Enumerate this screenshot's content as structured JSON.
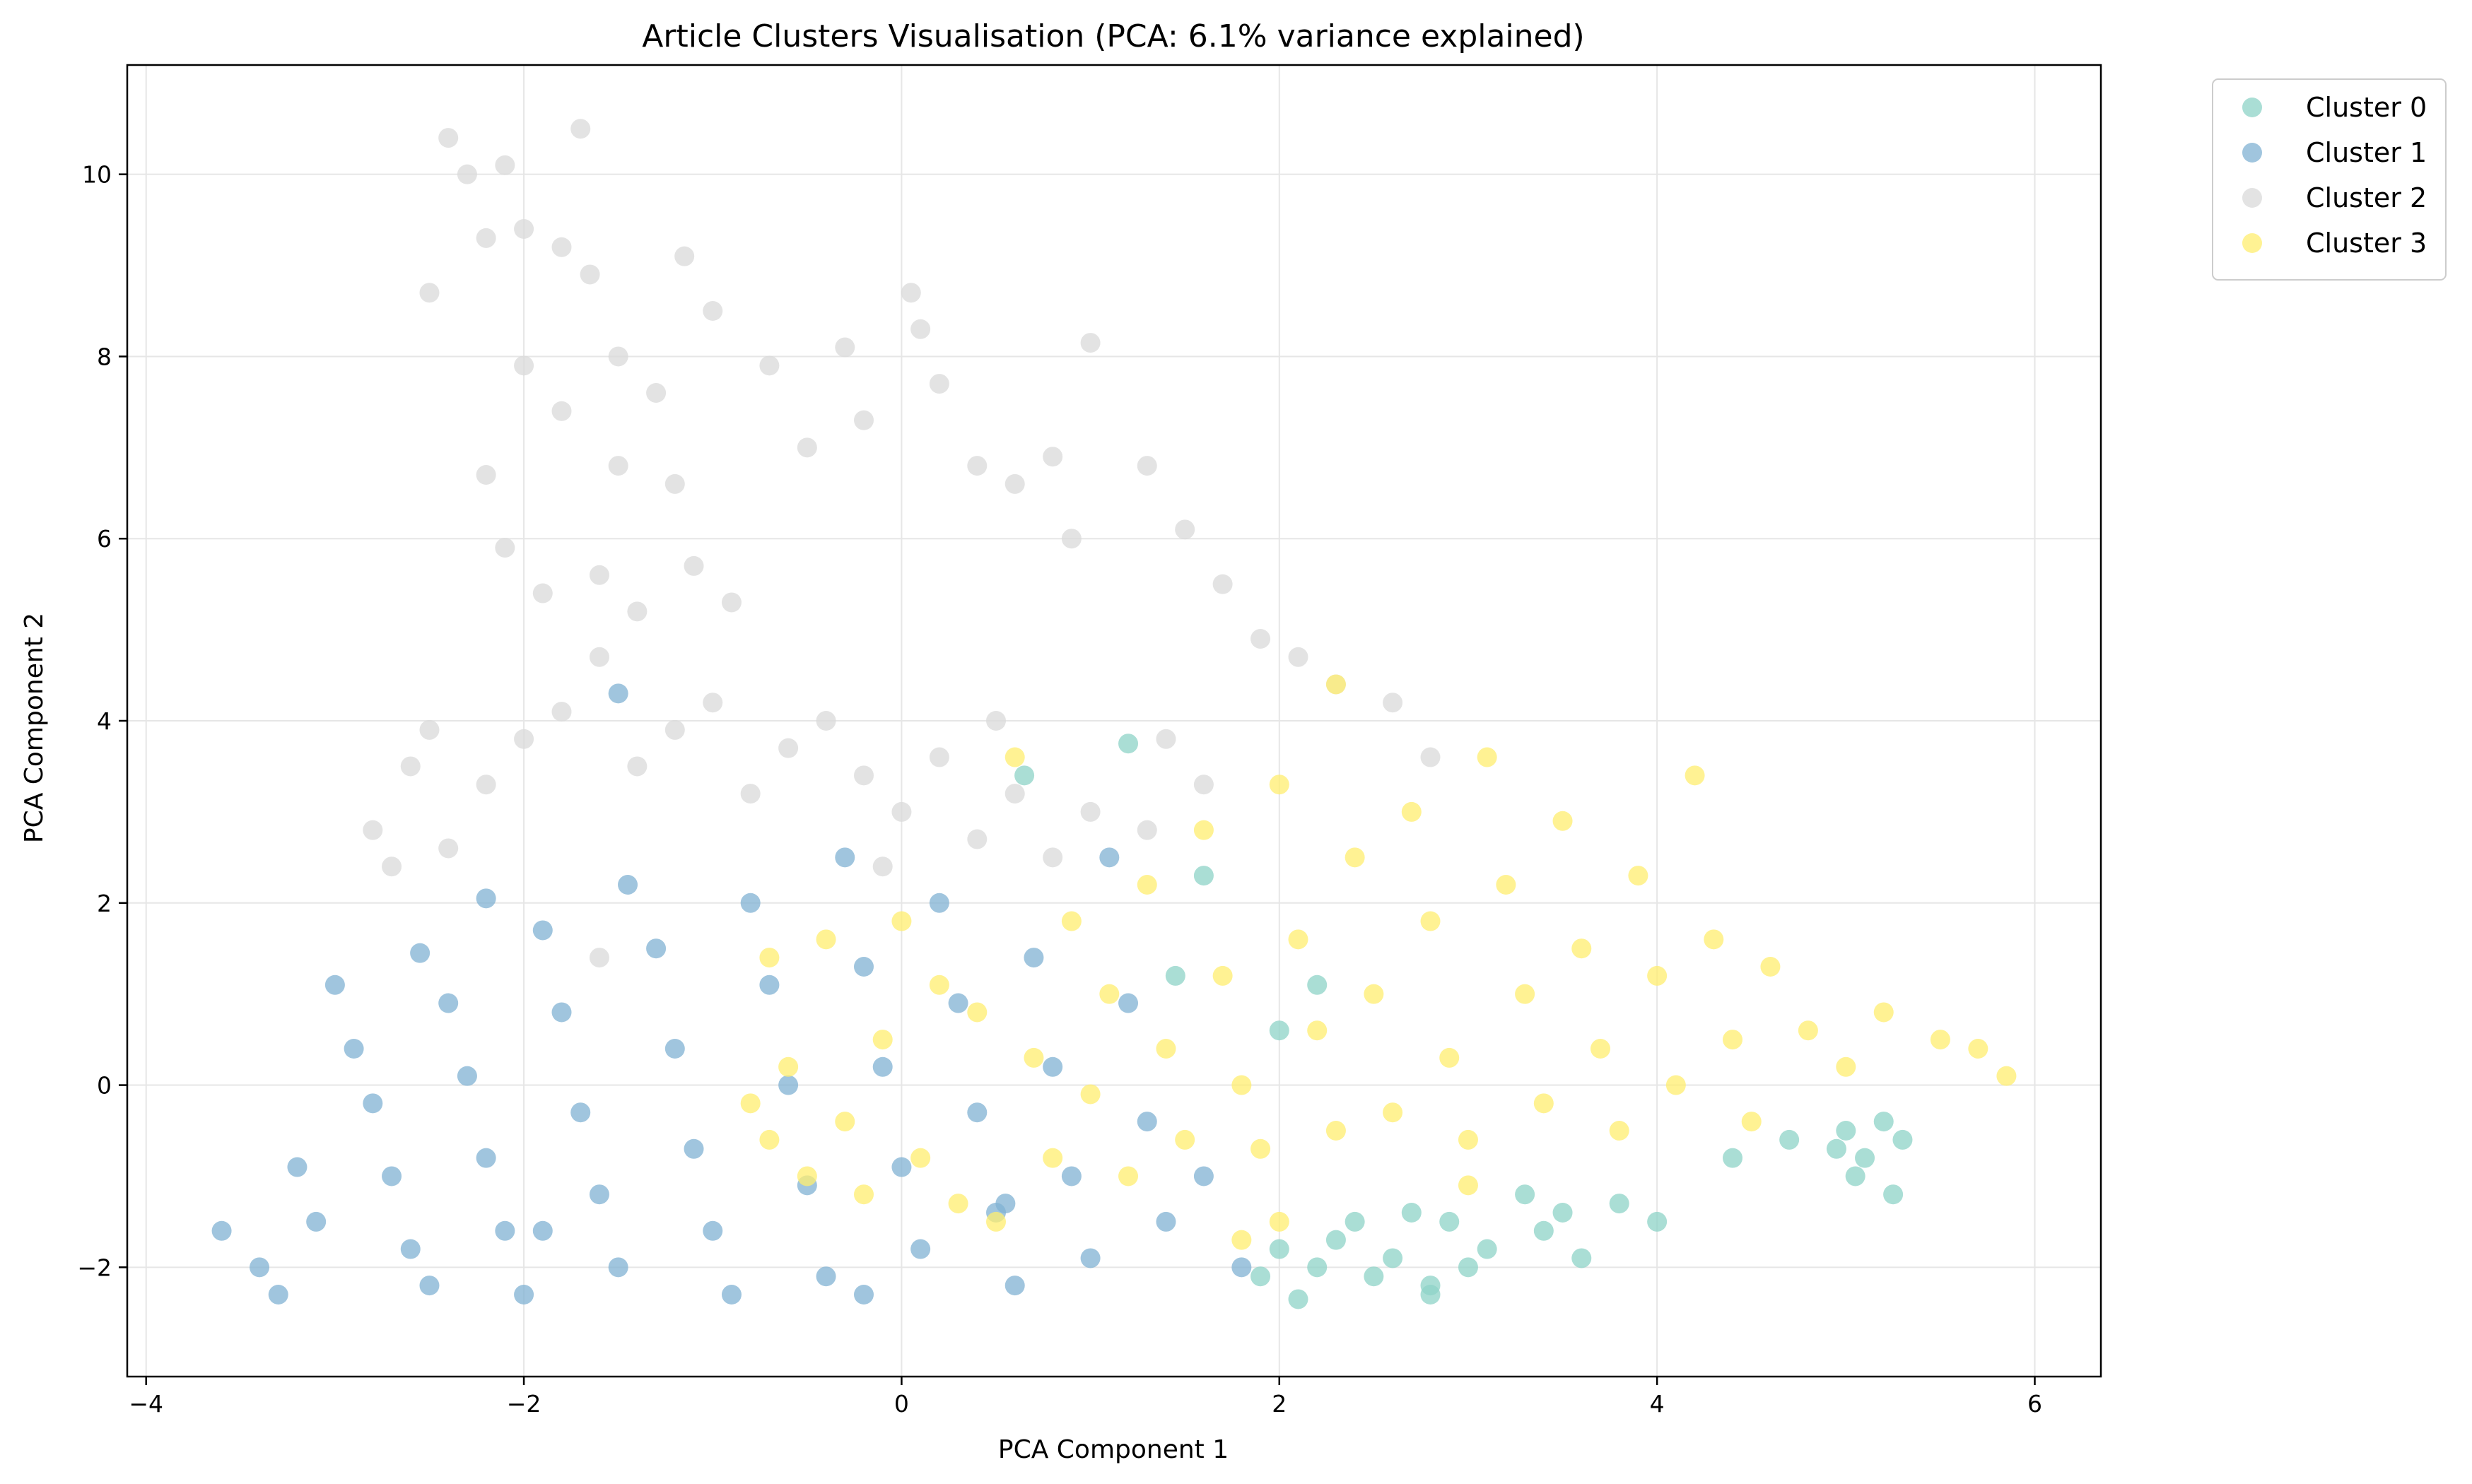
{
  "chart_data": {
    "type": "scatter",
    "title": "Article Clusters Visualisation (PCA: 6.1% variance explained)",
    "xlabel": "PCA Component 1",
    "ylabel": "PCA Component 2",
    "xlim": [
      -4.1,
      6.35
    ],
    "ylim": [
      -3.2,
      11.2
    ],
    "xticks": [
      -4,
      -2,
      0,
      2,
      4,
      6
    ],
    "yticks": [
      -2,
      0,
      2,
      4,
      6,
      8,
      10
    ],
    "grid": true,
    "legend_position": "outside-top-right",
    "series": [
      {
        "name": "Cluster 0",
        "color": "#8dd3c7",
        "points": [
          [
            2.3,
            -1.7
          ],
          [
            2.6,
            -1.9
          ],
          [
            2.9,
            -1.5
          ],
          [
            2.5,
            -2.1
          ],
          [
            3.1,
            -1.8
          ],
          [
            2.8,
            -2.2
          ],
          [
            3.4,
            -1.6
          ],
          [
            3.6,
            -1.9
          ],
          [
            2.2,
            -2.0
          ],
          [
            2.0,
            -1.8
          ],
          [
            3.8,
            -1.3
          ],
          [
            4.0,
            -1.5
          ],
          [
            3.3,
            -1.2
          ],
          [
            2.7,
            -1.4
          ],
          [
            1.9,
            -2.1
          ],
          [
            2.4,
            -1.5
          ],
          [
            3.0,
            -2.0
          ],
          [
            3.5,
            -1.4
          ],
          [
            4.4,
            -0.8
          ],
          [
            4.7,
            -0.6
          ],
          [
            5.0,
            -0.5
          ],
          [
            5.1,
            -0.8
          ],
          [
            5.2,
            -0.4
          ],
          [
            5.3,
            -0.6
          ],
          [
            5.25,
            -1.2
          ],
          [
            5.05,
            -1.0
          ],
          [
            4.95,
            -0.7
          ],
          [
            2.1,
            -2.35
          ],
          [
            2.8,
            -2.3
          ],
          [
            1.2,
            3.75
          ],
          [
            0.65,
            3.4
          ],
          [
            1.45,
            1.2
          ],
          [
            2.0,
            0.6
          ],
          [
            1.6,
            2.3
          ],
          [
            2.2,
            1.1
          ]
        ]
      },
      {
        "name": "Cluster 1",
        "color": "#80b1d3",
        "points": [
          [
            -3.6,
            -1.6
          ],
          [
            -3.4,
            -2.0
          ],
          [
            -3.3,
            -2.3
          ],
          [
            -3.1,
            -1.5
          ],
          [
            -3.2,
            -0.9
          ],
          [
            -3.0,
            1.1
          ],
          [
            -2.9,
            0.4
          ],
          [
            -2.8,
            -0.2
          ],
          [
            -2.7,
            -1.0
          ],
          [
            -2.6,
            -1.8
          ],
          [
            -2.5,
            -2.2
          ],
          [
            -2.55,
            1.45
          ],
          [
            -2.4,
            0.9
          ],
          [
            -2.3,
            0.1
          ],
          [
            -2.2,
            -0.8
          ],
          [
            -2.1,
            -1.6
          ],
          [
            -2.0,
            -2.3
          ],
          [
            -1.9,
            1.7
          ],
          [
            -1.8,
            0.8
          ],
          [
            -1.7,
            -0.3
          ],
          [
            -1.6,
            -1.2
          ],
          [
            -1.5,
            -2.0
          ],
          [
            -1.45,
            2.2
          ],
          [
            -1.3,
            1.5
          ],
          [
            -1.2,
            0.4
          ],
          [
            -1.1,
            -0.7
          ],
          [
            -1.0,
            -1.6
          ],
          [
            -0.9,
            -2.3
          ],
          [
            -0.8,
            2.0
          ],
          [
            -0.7,
            1.1
          ],
          [
            -0.6,
            0.0
          ],
          [
            -0.5,
            -1.1
          ],
          [
            -0.4,
            -2.1
          ],
          [
            -0.3,
            2.5
          ],
          [
            -0.2,
            1.3
          ],
          [
            -0.1,
            0.2
          ],
          [
            0.0,
            -0.9
          ],
          [
            0.1,
            -1.8
          ],
          [
            0.2,
            2.0
          ],
          [
            0.3,
            0.9
          ],
          [
            0.4,
            -0.3
          ],
          [
            0.5,
            -1.4
          ],
          [
            0.6,
            -2.2
          ],
          [
            0.7,
            1.4
          ],
          [
            0.8,
            0.2
          ],
          [
            0.9,
            -1.0
          ],
          [
            1.0,
            -1.9
          ],
          [
            1.2,
            0.9
          ],
          [
            1.3,
            -0.4
          ],
          [
            1.4,
            -1.5
          ],
          [
            1.6,
            -1.0
          ],
          [
            1.8,
            -2.0
          ],
          [
            1.1,
            2.5
          ],
          [
            -1.5,
            4.3
          ],
          [
            -2.2,
            2.05
          ],
          [
            -1.9,
            -1.6
          ],
          [
            -0.2,
            -2.3
          ],
          [
            0.55,
            -1.3
          ]
        ]
      },
      {
        "name": "Cluster 2",
        "color": "#d9d9d9",
        "points": [
          [
            -2.4,
            10.4
          ],
          [
            -2.3,
            10.0
          ],
          [
            -2.1,
            10.1
          ],
          [
            -2.2,
            9.3
          ],
          [
            -2.5,
            8.7
          ],
          [
            -2.0,
            9.4
          ],
          [
            -1.7,
            10.5
          ],
          [
            -1.8,
            9.2
          ],
          [
            -1.65,
            8.9
          ],
          [
            -1.15,
            9.1
          ],
          [
            -1.0,
            8.5
          ],
          [
            -2.0,
            7.9
          ],
          [
            -1.8,
            7.4
          ],
          [
            -1.5,
            8.0
          ],
          [
            -1.3,
            7.6
          ],
          [
            -1.2,
            6.6
          ],
          [
            -1.5,
            6.8
          ],
          [
            -2.2,
            6.7
          ],
          [
            -2.1,
            5.9
          ],
          [
            -1.9,
            5.4
          ],
          [
            -1.6,
            5.6
          ],
          [
            -1.4,
            5.2
          ],
          [
            -1.1,
            5.7
          ],
          [
            -0.9,
            5.3
          ],
          [
            -0.7,
            7.9
          ],
          [
            -0.5,
            7.0
          ],
          [
            -0.3,
            8.1
          ],
          [
            -0.2,
            7.3
          ],
          [
            0.05,
            8.7
          ],
          [
            0.1,
            8.3
          ],
          [
            0.2,
            7.7
          ],
          [
            0.4,
            6.8
          ],
          [
            0.6,
            6.6
          ],
          [
            0.8,
            6.9
          ],
          [
            1.0,
            8.15
          ],
          [
            1.3,
            6.8
          ],
          [
            0.9,
            6.0
          ],
          [
            1.5,
            6.1
          ],
          [
            1.7,
            5.5
          ],
          [
            1.9,
            4.9
          ],
          [
            2.1,
            4.7
          ],
          [
            2.3,
            4.4
          ],
          [
            2.6,
            4.2
          ],
          [
            2.8,
            3.6
          ],
          [
            -2.8,
            2.8
          ],
          [
            -2.6,
            3.5
          ],
          [
            -2.4,
            2.6
          ],
          [
            -2.2,
            3.3
          ],
          [
            -2.0,
            3.8
          ],
          [
            -1.8,
            4.1
          ],
          [
            -1.6,
            4.7
          ],
          [
            -1.4,
            3.5
          ],
          [
            -1.2,
            3.9
          ],
          [
            -1.0,
            4.2
          ],
          [
            -0.8,
            3.2
          ],
          [
            -0.6,
            3.7
          ],
          [
            -0.4,
            4.0
          ],
          [
            -0.2,
            3.4
          ],
          [
            0.0,
            3.0
          ],
          [
            0.2,
            3.6
          ],
          [
            0.4,
            2.7
          ],
          [
            0.6,
            3.2
          ],
          [
            0.8,
            2.5
          ],
          [
            1.0,
            3.0
          ],
          [
            1.3,
            2.8
          ],
          [
            1.6,
            3.3
          ],
          [
            -1.6,
            1.4
          ],
          [
            -2.7,
            2.4
          ],
          [
            0.5,
            4.0
          ],
          [
            1.4,
            3.8
          ],
          [
            -0.1,
            2.4
          ],
          [
            -2.5,
            3.9
          ]
        ]
      },
      {
        "name": "Cluster 3",
        "color": "#ffed6f",
        "points": [
          [
            -0.8,
            -0.2
          ],
          [
            -0.7,
            -0.6
          ],
          [
            -0.6,
            0.2
          ],
          [
            -0.5,
            -1.0
          ],
          [
            -0.4,
            1.6
          ],
          [
            -0.7,
            1.4
          ],
          [
            -0.3,
            -0.4
          ],
          [
            -0.2,
            -1.2
          ],
          [
            0.0,
            1.8
          ],
          [
            0.1,
            -0.8
          ],
          [
            0.3,
            -1.3
          ],
          [
            0.4,
            0.8
          ],
          [
            0.5,
            -1.5
          ],
          [
            0.7,
            0.3
          ],
          [
            0.8,
            -0.8
          ],
          [
            0.9,
            1.8
          ],
          [
            1.0,
            -0.1
          ],
          [
            1.1,
            1.0
          ],
          [
            1.2,
            -1.0
          ],
          [
            1.3,
            2.2
          ],
          [
            1.4,
            0.4
          ],
          [
            1.5,
            -0.6
          ],
          [
            1.6,
            2.8
          ],
          [
            1.7,
            1.2
          ],
          [
            1.8,
            0.0
          ],
          [
            1.9,
            -0.7
          ],
          [
            2.0,
            3.3
          ],
          [
            2.1,
            1.6
          ],
          [
            2.2,
            0.6
          ],
          [
            2.3,
            -0.5
          ],
          [
            2.3,
            4.4
          ],
          [
            2.4,
            2.5
          ],
          [
            2.5,
            1.0
          ],
          [
            2.6,
            -0.3
          ],
          [
            2.7,
            3.0
          ],
          [
            2.8,
            1.8
          ],
          [
            2.9,
            0.3
          ],
          [
            3.0,
            -0.6
          ],
          [
            3.1,
            3.6
          ],
          [
            3.2,
            2.2
          ],
          [
            3.3,
            1.0
          ],
          [
            3.4,
            -0.2
          ],
          [
            3.5,
            2.9
          ],
          [
            3.6,
            1.5
          ],
          [
            3.7,
            0.4
          ],
          [
            3.8,
            -0.5
          ],
          [
            3.9,
            2.3
          ],
          [
            4.0,
            1.2
          ],
          [
            4.1,
            0.0
          ],
          [
            4.2,
            3.4
          ],
          [
            4.3,
            1.6
          ],
          [
            4.4,
            0.5
          ],
          [
            4.5,
            -0.4
          ],
          [
            4.6,
            1.3
          ],
          [
            4.8,
            0.6
          ],
          [
            5.0,
            0.2
          ],
          [
            5.2,
            0.8
          ],
          [
            5.5,
            0.5
          ],
          [
            5.7,
            0.4
          ],
          [
            5.85,
            0.1
          ],
          [
            2.0,
            -1.5
          ],
          [
            1.8,
            -1.7
          ],
          [
            0.6,
            3.6
          ],
          [
            -0.1,
            0.5
          ],
          [
            0.2,
            1.1
          ],
          [
            3.0,
            -1.1
          ]
        ]
      }
    ]
  }
}
